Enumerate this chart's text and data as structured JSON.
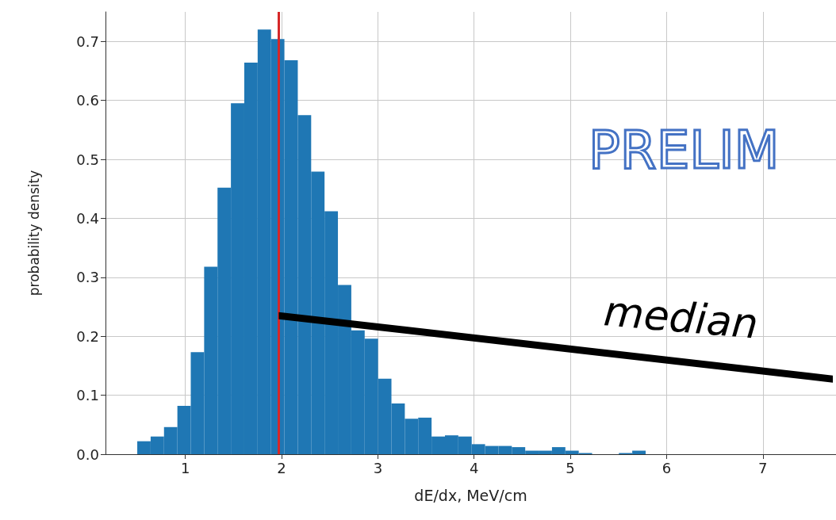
{
  "chart_data": {
    "type": "histogram",
    "xlabel": "dE/dx, MeV/cm",
    "ylabel": "probability density",
    "color": "#1f77b4",
    "bins": [
      0.5,
      0.639,
      0.778,
      0.917,
      1.056,
      1.195,
      1.334,
      1.473,
      1.612,
      1.751,
      1.89,
      2.029,
      2.168,
      2.307,
      2.446,
      2.585,
      2.724,
      2.863,
      3.002,
      3.141,
      3.28,
      3.419,
      3.558,
      3.697,
      3.836,
      3.975,
      4.114,
      4.253,
      4.392,
      4.531,
      4.67,
      4.809,
      4.948,
      5.087,
      5.226,
      5.365,
      5.504,
      5.643,
      5.782
    ],
    "values": [
      0.022,
      0.03,
      0.046,
      0.082,
      0.173,
      0.318,
      0.452,
      0.595,
      0.664,
      0.72,
      0.704,
      0.668,
      0.575,
      0.479,
      0.412,
      0.287,
      0.21,
      0.196,
      0.128,
      0.086,
      0.06,
      0.062,
      0.03,
      0.032,
      0.03,
      0.017,
      0.014,
      0.014,
      0.012,
      0.006,
      0.006,
      0.012,
      0.006,
      0.002,
      0,
      0,
      0.002,
      0.006
    ],
    "xlim": [
      0.17,
      7.76
    ],
    "xticks": [
      1,
      2,
      3,
      4,
      5,
      6,
      7
    ],
    "ylim": [
      0,
      0.75
    ],
    "yticks": [
      {
        "value": 0,
        "label": "0.0"
      },
      {
        "value": 0.1,
        "label": "0.1"
      },
      {
        "value": 0.2,
        "label": "0.2"
      },
      {
        "value": 0.3,
        "label": "0.3"
      },
      {
        "value": 0.4,
        "label": "0.4"
      },
      {
        "value": 0.5,
        "label": "0.5"
      },
      {
        "value": 0.6,
        "label": "0.6"
      },
      {
        "value": 0.7,
        "label": "0.7"
      }
    ],
    "grid": true,
    "ref_lines": [
      {
        "axis": "x",
        "value": 1.97,
        "color": "#d62728"
      }
    ],
    "annotations": [
      "PRELIM",
      {
        "text": "median",
        "x": 1.97,
        "y": 0.235
      }
    ]
  }
}
